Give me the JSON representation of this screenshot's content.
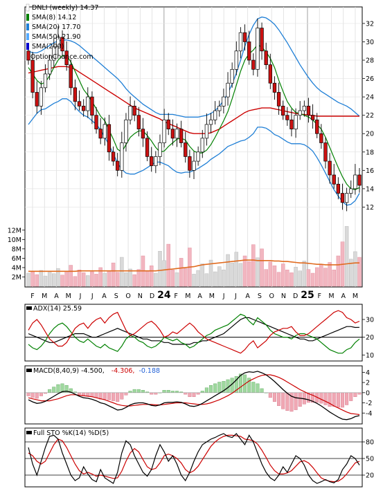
{
  "chart_data": [
    {
      "type": "candlestick",
      "panel": "price",
      "title": "DNLI (weekly) 14.37",
      "watermark": "OptionChance.com",
      "legend": [
        {
          "label": "DNLI (weekly) 14.37",
          "color": "#ffffff"
        },
        {
          "label": "SMA(8) 14.12",
          "color": "#008000"
        },
        {
          "label": "SMA(20) 17.70",
          "color": "#1f7fd6"
        },
        {
          "label": "SMA(50) 21.90",
          "color": "#55aaff"
        },
        {
          "label": "SMA(200)",
          "color": "#0000cc"
        }
      ],
      "y_ticks": [
        "12",
        "14",
        "16",
        "18",
        "20",
        "22",
        "24",
        "26",
        "28",
        "30",
        "32"
      ],
      "ylim": [
        10,
        33.5
      ],
      "x_ticks": [
        "F",
        "M",
        "A",
        "M",
        "J",
        "J",
        "A",
        "S",
        "O",
        "N",
        "D",
        "24",
        "F",
        "M",
        "A",
        "M",
        "J",
        "J",
        "A",
        "S",
        "O",
        "N",
        "D",
        "25",
        "F",
        "M",
        "A",
        "M"
      ],
      "bold_x_ticks": [
        "24",
        "25"
      ],
      "close": [
        28.0,
        24.5,
        23.0,
        25.0,
        26.5,
        28.0,
        29.5,
        30.5,
        29.0,
        27.5,
        25.0,
        23.5,
        23.0,
        22.5,
        24.0,
        22.0,
        20.5,
        19.5,
        21.0,
        18.0,
        17.0,
        16.0,
        19.0,
        21.5,
        23.0,
        22.0,
        20.5,
        19.5,
        17.5,
        16.5,
        17.5,
        19.0,
        21.5,
        20.5,
        19.5,
        20.5,
        19.0,
        17.5,
        16.0,
        17.0,
        18.0,
        19.5,
        21.0,
        21.5,
        22.5,
        23.0,
        24.0,
        25.5,
        27.0,
        29.0,
        31.0,
        30.0,
        28.0,
        27.0,
        31.5,
        29.0,
        27.5,
        25.5,
        24.5,
        23.0,
        22.0,
        21.5,
        20.5,
        22.0,
        22.5,
        23.0,
        22.0,
        21.5,
        20.0,
        19.0,
        17.0,
        15.5,
        14.5,
        13.5,
        12.5,
        13.5,
        14.0,
        15.5,
        14.37
      ],
      "sma8": [
        27.2,
        26.5,
        25.8,
        25.4,
        25.6,
        26.3,
        27.2,
        28.0,
        28.5,
        28.5,
        27.8,
        26.8,
        25.8,
        24.8,
        24.2,
        23.5,
        22.7,
        21.9,
        21.4,
        20.4,
        19.4,
        18.3,
        18.0,
        18.8,
        19.6,
        20.0,
        20.3,
        20.3,
        19.8,
        19.2,
        18.5,
        18.0,
        18.1,
        18.6,
        19.0,
        19.4,
        19.5,
        19.3,
        18.6,
        18.1,
        17.9,
        17.9,
        18.2,
        18.8,
        19.6,
        20.5,
        21.4,
        22.4,
        23.8,
        25.3,
        26.8,
        28.0,
        28.7,
        29.1,
        29.7,
        29.4,
        28.9,
        28.2,
        27.2,
        25.8,
        24.6,
        23.5,
        22.8,
        22.3,
        22.2,
        22.0,
        21.8,
        21.5,
        21.0,
        20.5,
        19.6,
        18.5,
        17.4,
        16.3,
        15.3,
        14.5,
        14.0,
        13.9,
        14.12
      ],
      "sma20": [
        25.0,
        25.2,
        25.5,
        25.8,
        26.0,
        26.3,
        26.6,
        26.8,
        27.0,
        27.0,
        26.8,
        26.4,
        26.0,
        25.6,
        25.3,
        24.9,
        24.5,
        24.0,
        23.4,
        22.8,
        22.1,
        21.4,
        20.8,
        20.3,
        20.0,
        19.8,
        19.7,
        19.6,
        19.6,
        19.6,
        19.6,
        19.5,
        19.4,
        19.3,
        19.1,
        18.9,
        18.8,
        18.8,
        18.8,
        18.9,
        19.0,
        19.2,
        19.4,
        19.7,
        20.0,
        20.4,
        20.9,
        21.5,
        22.1,
        22.8,
        23.6,
        24.4,
        25.2,
        25.9,
        26.6,
        26.7,
        26.6,
        26.3,
        25.9,
        25.5,
        25.0,
        24.5,
        24.0,
        23.6,
        23.2,
        22.8,
        22.3,
        21.8,
        21.2,
        20.6,
        20.0,
        19.4,
        18.8,
        18.3,
        17.9,
        17.6,
        17.5,
        17.5,
        17.7
      ],
      "sma50": [
        26.6,
        26.7,
        26.8,
        26.9,
        27.0,
        27.1,
        27.2,
        27.3,
        27.3,
        27.3,
        27.2,
        27.0,
        26.7,
        26.4,
        26.1,
        25.8,
        25.5,
        25.2,
        24.9,
        24.6,
        24.3,
        24.0,
        23.7,
        23.4,
        23.1,
        22.8,
        22.6,
        22.4,
        22.2,
        22.0,
        21.8,
        21.6,
        21.3,
        21.1,
        20.9,
        20.7,
        20.5,
        20.3,
        20.1,
        20.0,
        20.0,
        20.0,
        20.0,
        20.1,
        20.3,
        20.5,
        20.8,
        21.1,
        21.4,
        21.7,
        22.0,
        22.3,
        22.5,
        22.6,
        22.7,
        22.8,
        22.8,
        22.8,
        22.7,
        22.6,
        22.5,
        22.4,
        22.3,
        22.2,
        22.1,
        22.1,
        22.0,
        22.0,
        21.9,
        21.9,
        21.9,
        21.9,
        21.9,
        21.9,
        21.9,
        21.9,
        21.9,
        21.9,
        21.9
      ],
      "upper_band": [
        29.0,
        28.8,
        28.8,
        29.0,
        29.3,
        29.6,
        29.9,
        30.1,
        30.2,
        30.2,
        30.1,
        29.9,
        29.6,
        29.2,
        28.8,
        28.4,
        28.0,
        27.6,
        27.2,
        26.8,
        26.4,
        26.0,
        25.5,
        24.9,
        24.4,
        24.0,
        23.6,
        23.2,
        22.9,
        22.6,
        22.3,
        22.1,
        22.1,
        22.1,
        22.1,
        22.0,
        21.9,
        21.8,
        21.8,
        21.8,
        21.8,
        21.9,
        22.0,
        22.2,
        22.5,
        23.0,
        23.6,
        24.4,
        25.4,
        26.6,
        28.0,
        29.5,
        30.8,
        31.8,
        32.5,
        32.7,
        32.6,
        32.3,
        31.9,
        31.3,
        30.6,
        29.9,
        29.1,
        28.3,
        27.5,
        26.8,
        26.1,
        25.5,
        25.0,
        24.6,
        24.3,
        24.0,
        23.7,
        23.4,
        23.2,
        23.0,
        22.7,
        22.3,
        21.9
      ],
      "lower_band": [
        21.0,
        21.6,
        22.2,
        22.6,
        22.7,
        23.0,
        23.3,
        23.5,
        23.8,
        23.8,
        23.5,
        22.9,
        22.4,
        22.0,
        21.8,
        21.4,
        21.0,
        20.4,
        19.6,
        18.8,
        17.8,
        16.8,
        16.1,
        15.7,
        15.6,
        15.6,
        15.8,
        16.0,
        16.3,
        16.6,
        16.9,
        16.9,
        16.7,
        16.5,
        16.1,
        15.8,
        15.7,
        15.8,
        15.8,
        16.0,
        16.2,
        16.5,
        16.8,
        17.2,
        17.5,
        17.8,
        18.2,
        18.6,
        18.8,
        19.0,
        19.2,
        19.3,
        19.6,
        20.0,
        20.7,
        20.7,
        20.6,
        20.3,
        19.9,
        19.7,
        19.4,
        19.1,
        18.9,
        18.9,
        18.9,
        18.8,
        18.5,
        18.1,
        17.4,
        16.6,
        15.7,
        14.8,
        13.9,
        13.2,
        12.6,
        12.2,
        12.3,
        12.7,
        13.5
      ],
      "volume_ticks": [
        "2M",
        "4M",
        "6M",
        "8M",
        "10M",
        "12M"
      ],
      "volume_ylim": [
        0,
        13
      ],
      "volume": [
        2.8,
        3.1,
        2.5,
        3.4,
        2.2,
        3.0,
        2.7,
        3.8,
        2.4,
        3.2,
        4.5,
        2.1,
        3.5,
        2.9,
        2.3,
        3.1,
        2.6,
        4.0,
        2.8,
        3.3,
        5.0,
        3.0,
        6.2,
        2.9,
        3.7,
        2.5,
        3.6,
        6.5,
        3.2,
        4.4,
        2.8,
        7.5,
        5.5,
        9.0,
        3.5,
        2.9,
        6.0,
        3.8,
        8.2,
        2.6,
        3.4,
        4.8,
        2.7,
        5.6,
        3.1,
        4.2,
        3.5,
        6.8,
        5.0,
        7.3,
        4.9,
        6.5,
        5.3,
        8.9,
        6.1,
        8.0,
        3.6,
        5.2,
        4.4,
        3.0,
        4.8,
        3.5,
        2.9,
        4.1,
        3.3,
        5.4,
        3.6,
        2.8,
        4.0,
        4.6,
        3.9,
        5.1,
        3.5,
        6.5,
        9.5,
        12.8,
        5.8,
        7.4,
        6.2
      ],
      "volume_avg": [
        3.2,
        3.2,
        3.2,
        3.2,
        3.2,
        3.2,
        3.2,
        3.2,
        3.2,
        3.2,
        3.2,
        3.2,
        3.3,
        3.3,
        3.3,
        3.3,
        3.3,
        3.3,
        3.3,
        3.3,
        3.3,
        3.3,
        3.3,
        3.3,
        3.3,
        3.3,
        3.3,
        3.3,
        3.3,
        3.3,
        3.3,
        3.4,
        3.5,
        3.6,
        3.7,
        3.8,
        3.9,
        4.0,
        4.1,
        4.2,
        4.4,
        4.6,
        4.7,
        4.8,
        4.9,
        5.0,
        5.1,
        5.2,
        5.3,
        5.4,
        5.5,
        5.6,
        5.6,
        5.6,
        5.5,
        5.5,
        5.5,
        5.5,
        5.4,
        5.4,
        5.3,
        5.3,
        5.2,
        5.1,
        5.0,
        5.0,
        4.9,
        4.8,
        4.7,
        4.7,
        4.6,
        4.6,
        4.6,
        4.6,
        4.7,
        4.8,
        4.9,
        5.0,
        5.0
      ]
    },
    {
      "type": "line",
      "panel": "adx",
      "label": "ADX(14) 25.59",
      "y_ticks": [
        "10",
        "20",
        "30"
      ],
      "ylim": [
        7,
        37
      ],
      "reference_line": 20,
      "series": [
        {
          "color": "#000000",
          "values": [
            22,
            21,
            20,
            19,
            18,
            17,
            17,
            18,
            19,
            20,
            21,
            22,
            22,
            22,
            21,
            20,
            20,
            21,
            22,
            23,
            24,
            25,
            24,
            23,
            22,
            21,
            20,
            19,
            19,
            18,
            18,
            18,
            17,
            17,
            16,
            16,
            16,
            16,
            16,
            17,
            17,
            18,
            18,
            19,
            20,
            21,
            22,
            24,
            26,
            28,
            30,
            31,
            31,
            30,
            29,
            28,
            27,
            26,
            25,
            24,
            23,
            22,
            21,
            20,
            19,
            19,
            18,
            18,
            19,
            20,
            21,
            22,
            23,
            24,
            25,
            26,
            26,
            25.5,
            25.59
          ]
        },
        {
          "color": "#008000",
          "values": [
            16,
            14,
            13,
            15,
            18,
            22,
            25,
            27,
            28,
            26,
            23,
            20,
            18,
            17,
            19,
            17,
            15,
            14,
            16,
            14,
            13,
            12,
            15,
            19,
            21,
            20,
            18,
            17,
            15,
            14,
            15,
            17,
            20,
            19,
            18,
            19,
            17,
            16,
            14,
            15,
            17,
            19,
            21,
            22,
            24,
            25,
            26,
            27,
            29,
            31,
            33,
            32,
            29,
            27,
            31,
            29,
            27,
            24,
            22,
            21,
            20,
            20,
            19,
            21,
            22,
            22,
            21,
            20,
            19,
            17,
            15,
            13,
            12,
            11,
            11,
            13,
            14,
            17,
            19
          ]
        },
        {
          "color": "#cc0000",
          "values": [
            24,
            28,
            30,
            27,
            23,
            19,
            17,
            15,
            15,
            17,
            21,
            25,
            27,
            28,
            25,
            28,
            30,
            31,
            28,
            31,
            33,
            34,
            29,
            24,
            21,
            22,
            24,
            26,
            28,
            29,
            27,
            24,
            20,
            21,
            23,
            22,
            24,
            26,
            28,
            26,
            23,
            21,
            19,
            18,
            17,
            16,
            15,
            14,
            13,
            12,
            11,
            13,
            16,
            18,
            14,
            16,
            18,
            21,
            23,
            24,
            25,
            25,
            26,
            23,
            21,
            21,
            22,
            24,
            26,
            28,
            30,
            32,
            34,
            35,
            34,
            31,
            30,
            28,
            29
          ]
        }
      ]
    },
    {
      "type": "line",
      "panel": "macd",
      "label": "MACD(8,40,9) -4.500,",
      "value_macd": "-4.306,",
      "value_signal": "-0.188",
      "y_ticks": [
        "4",
        "2",
        "0",
        "-2",
        "-4"
      ],
      "ylim": [
        -6,
        5
      ],
      "macd": [
        -1.4,
        -1.8,
        -2.1,
        -2.0,
        -1.7,
        -1.2,
        -0.7,
        -0.2,
        0.2,
        0.3,
        0.1,
        -0.3,
        -0.7,
        -1.0,
        -1.1,
        -1.3,
        -1.6,
        -2.0,
        -2.2,
        -2.6,
        -3.0,
        -3.4,
        -3.3,
        -2.9,
        -2.4,
        -2.1,
        -2.0,
        -2.0,
        -2.2,
        -2.5,
        -2.6,
        -2.4,
        -2.0,
        -1.9,
        -1.9,
        -1.8,
        -1.9,
        -2.2,
        -2.6,
        -2.7,
        -2.5,
        -2.1,
        -1.6,
        -1.1,
        -0.6,
        -0.1,
        0.4,
        1.0,
        1.7,
        2.5,
        3.4,
        3.9,
        4.1,
        4.0,
        4.2,
        3.9,
        3.5,
        2.9,
        2.2,
        1.4,
        0.6,
        -0.1,
        -0.7,
        -1.0,
        -1.1,
        -1.2,
        -1.4,
        -1.7,
        -2.1,
        -2.6,
        -3.2,
        -3.8,
        -4.3,
        -4.8,
        -5.2,
        -5.3,
        -5.1,
        -4.7,
        -4.5
      ],
      "signal": [
        -1.0,
        -1.2,
        -1.4,
        -1.6,
        -1.6,
        -1.6,
        -1.4,
        -1.2,
        -0.9,
        -0.6,
        -0.4,
        -0.4,
        -0.5,
        -0.6,
        -0.7,
        -0.8,
        -1.0,
        -1.2,
        -1.4,
        -1.7,
        -2.0,
        -2.3,
        -2.5,
        -2.6,
        -2.6,
        -2.5,
        -2.4,
        -2.3,
        -2.3,
        -2.3,
        -2.4,
        -2.4,
        -2.3,
        -2.2,
        -2.1,
        -2.0,
        -2.0,
        -2.0,
        -2.1,
        -2.2,
        -2.3,
        -2.3,
        -2.2,
        -2.0,
        -1.7,
        -1.4,
        -1.0,
        -0.6,
        -0.1,
        0.5,
        1.1,
        1.7,
        2.3,
        2.7,
        3.1,
        3.4,
        3.5,
        3.5,
        3.3,
        3.0,
        2.6,
        2.1,
        1.6,
        1.1,
        0.6,
        0.2,
        -0.2,
        -0.5,
        -0.9,
        -1.3,
        -1.7,
        -2.1,
        -2.6,
        -3.0,
        -3.4,
        -3.8,
        -4.1,
        -4.2,
        -4.3
      ]
    },
    {
      "type": "line",
      "panel": "stochastic",
      "label": "Full STO %K(14) %D(5)",
      "y_ticks": [
        "80",
        "50",
        "20"
      ],
      "ylim": [
        0,
        100
      ],
      "k": [
        70,
        40,
        20,
        45,
        70,
        90,
        92,
        85,
        60,
        40,
        20,
        10,
        15,
        35,
        22,
        12,
        8,
        30,
        15,
        10,
        5,
        25,
        60,
        82,
        75,
        55,
        40,
        25,
        18,
        30,
        55,
        75,
        62,
        45,
        55,
        40,
        20,
        10,
        25,
        45,
        62,
        75,
        80,
        85,
        88,
        92,
        95,
        90,
        88,
        95,
        85,
        75,
        92,
        80,
        60,
        40,
        25,
        15,
        10,
        20,
        35,
        25,
        40,
        55,
        50,
        38,
        20,
        10,
        5,
        8,
        12,
        8,
        6,
        12,
        30,
        40,
        55,
        50,
        38
      ],
      "d": [
        60,
        55,
        45,
        40,
        45,
        60,
        75,
        85,
        82,
        70,
        55,
        40,
        28,
        22,
        25,
        22,
        18,
        20,
        18,
        16,
        14,
        15,
        27,
        45,
        60,
        68,
        62,
        48,
        35,
        30,
        32,
        42,
        55,
        58,
        55,
        50,
        42,
        30,
        24,
        28,
        36,
        48,
        60,
        72,
        80,
        86,
        90,
        92,
        92,
        91,
        90,
        85,
        84,
        82,
        76,
        65,
        52,
        38,
        28,
        22,
        22,
        24,
        28,
        36,
        44,
        46,
        42,
        34,
        24,
        15,
        11,
        9,
        8,
        9,
        14,
        22,
        32,
        42,
        45
      ]
    }
  ]
}
